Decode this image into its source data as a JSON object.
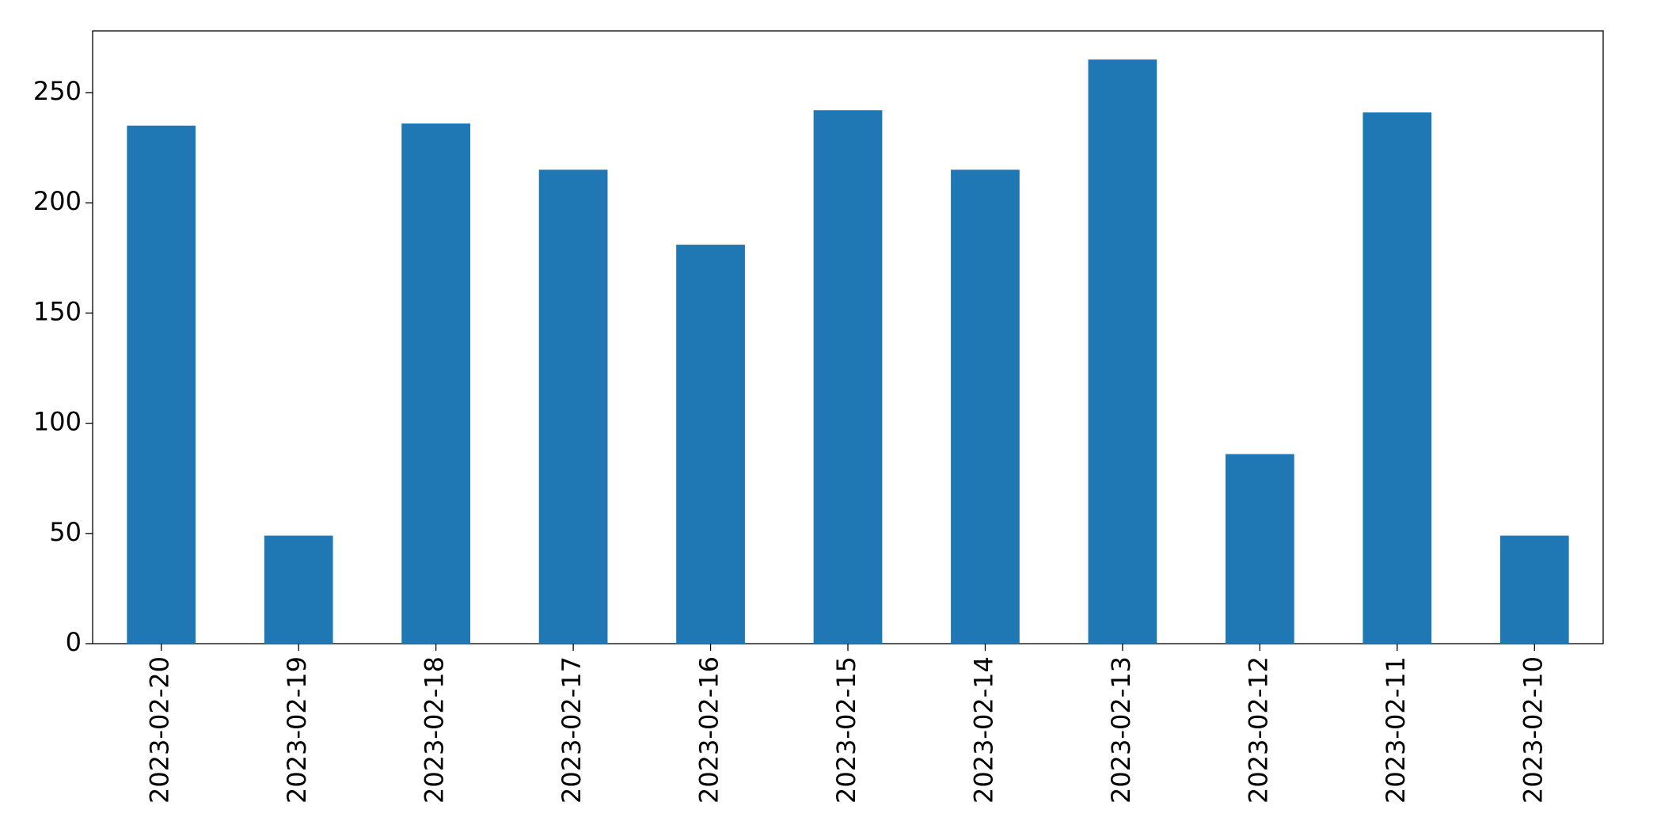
{
  "chart_data": {
    "type": "bar",
    "categories": [
      "2023-02-20",
      "2023-02-19",
      "2023-02-18",
      "2023-02-17",
      "2023-02-16",
      "2023-02-15",
      "2023-02-14",
      "2023-02-13",
      "2023-02-12",
      "2023-02-11",
      "2023-02-10"
    ],
    "values": [
      235,
      49,
      236,
      215,
      181,
      242,
      215,
      265,
      86,
      241,
      49
    ],
    "color": "#1f77b4",
    "ylim": [
      0,
      278
    ],
    "yticks": [
      0,
      50,
      100,
      150,
      200,
      250
    ],
    "grid": false
  }
}
